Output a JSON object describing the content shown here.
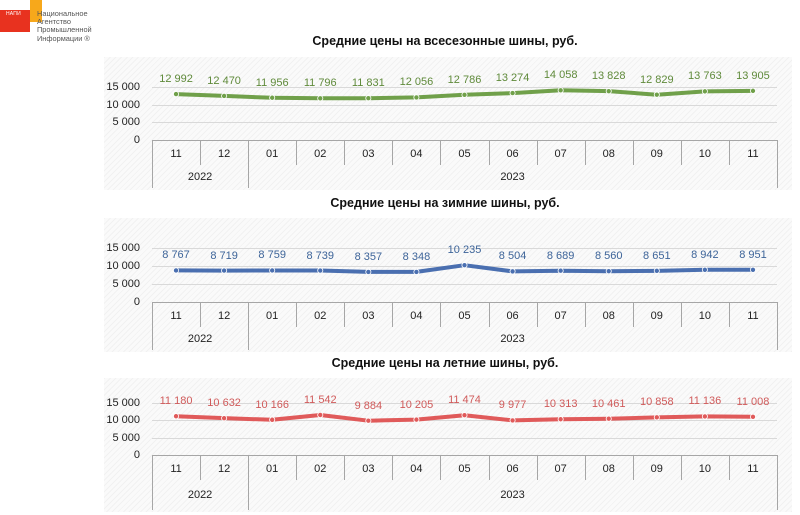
{
  "logo": {
    "abbr": "НАПИ",
    "name": "Национальное\nАгентство\nПромышленной\nИнформации ®",
    "colors": {
      "red": "#e8321f",
      "orange": "#f7a81b"
    }
  },
  "chart_data": [
    {
      "type": "line",
      "title": "Средние цены на всесезонные шины, руб.",
      "xlabel": "",
      "ylabel": "",
      "categories": [
        "11",
        "12",
        "01",
        "02",
        "03",
        "04",
        "05",
        "06",
        "07",
        "08",
        "09",
        "10",
        "11"
      ],
      "category_groups": [
        {
          "label": "2022",
          "span": 2
        },
        {
          "label": "2023",
          "span": 11
        }
      ],
      "series": [
        {
          "name": "Всесезонные",
          "color": "#70a04a",
          "values": [
            12992,
            12470,
            11956,
            11796,
            11831,
            12056,
            12786,
            13274,
            14058,
            13828,
            12829,
            13763,
            13905
          ]
        }
      ],
      "value_labels": [
        "12 992",
        "12 470",
        "11 956",
        "11 796",
        "11 831",
        "12 056",
        "12 786",
        "13 274",
        "14 058",
        "13 828",
        "12 829",
        "13 763",
        "13 905"
      ],
      "yticks": [
        "0",
        "5 000",
        "10 000",
        "15 000"
      ],
      "ylim": [
        0,
        15000
      ],
      "grid": true,
      "legend": "none"
    },
    {
      "type": "line",
      "title": "Средние цены на зимние шины, руб.",
      "xlabel": "",
      "ylabel": "",
      "categories": [
        "11",
        "12",
        "01",
        "02",
        "03",
        "04",
        "05",
        "06",
        "07",
        "08",
        "09",
        "10",
        "11"
      ],
      "category_groups": [
        {
          "label": "2022",
          "span": 2
        },
        {
          "label": "2023",
          "span": 11
        }
      ],
      "series": [
        {
          "name": "Зимние",
          "color": "#4a6fb0",
          "values": [
            8767,
            8719,
            8759,
            8739,
            8357,
            8348,
            10235,
            8504,
            8689,
            8560,
            8651,
            8942,
            8951
          ]
        }
      ],
      "value_labels": [
        "8 767",
        "8 719",
        "8 759",
        "8 739",
        "8 357",
        "8 348",
        "10 235",
        "8 504",
        "8 689",
        "8 560",
        "8 651",
        "8 942",
        "8 951"
      ],
      "yticks": [
        "0",
        "5 000",
        "10 000",
        "15 000"
      ],
      "ylim": [
        0,
        15000
      ],
      "grid": true,
      "legend": "none"
    },
    {
      "type": "line",
      "title": "Средние цены на летние шины, руб.",
      "xlabel": "",
      "ylabel": "",
      "categories": [
        "11",
        "12",
        "01",
        "02",
        "03",
        "04",
        "05",
        "06",
        "07",
        "08",
        "09",
        "10",
        "11"
      ],
      "category_groups": [
        {
          "label": "2022",
          "span": 2
        },
        {
          "label": "2023",
          "span": 11
        }
      ],
      "series": [
        {
          "name": "Летние",
          "color": "#e05a5a",
          "values": [
            11180,
            10632,
            10166,
            11542,
            9884,
            10205,
            11474,
            9977,
            10313,
            10461,
            10858,
            11136,
            11008
          ]
        }
      ],
      "value_labels": [
        "11 180",
        "10 632",
        "10 166",
        "11 542",
        "9 884",
        "10 205",
        "11 474",
        "9 977",
        "10 313",
        "10 461",
        "10 858",
        "11 136",
        "11 008"
      ],
      "yticks": [
        "0",
        "5 000",
        "10 000",
        "15 000"
      ],
      "ylim": [
        0,
        15000
      ],
      "grid": true,
      "legend": "none"
    }
  ],
  "label_colors": [
    "#5f8a3a",
    "#3d6499",
    "#d05a5a"
  ]
}
